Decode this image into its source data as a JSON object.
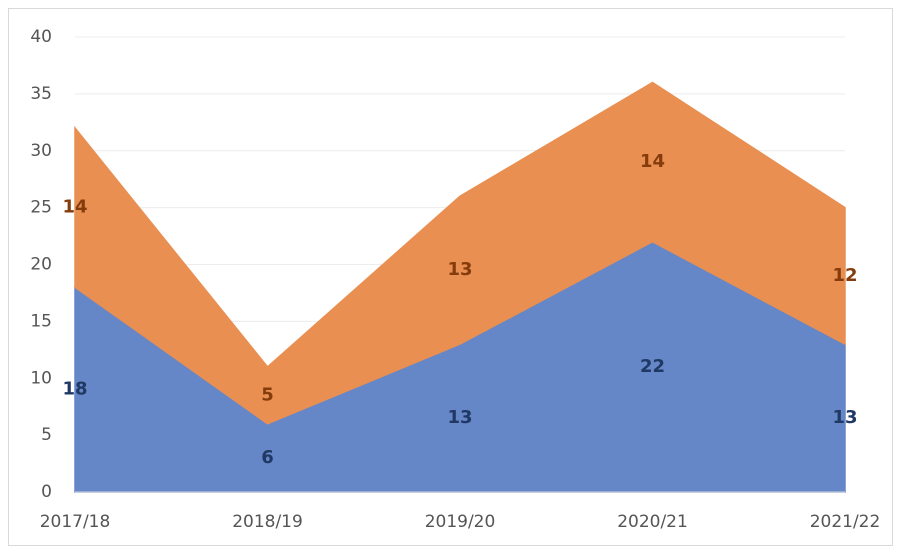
{
  "chart_data": {
    "type": "area",
    "stacked": true,
    "categories": [
      "2017/18",
      "2018/19",
      "2019/20",
      "2020/21",
      "2021/22"
    ],
    "series": [
      {
        "color": "#6586c7",
        "label_color": "#1f3864",
        "values": [
          18,
          6,
          13,
          22,
          13
        ]
      },
      {
        "color": "#e98f51",
        "label_color": "#843c0c",
        "values": [
          14,
          5,
          13,
          14,
          12
        ]
      }
    ],
    "ylim": [
      0,
      40
    ],
    "yticks": [
      0,
      5,
      10,
      15,
      20,
      25,
      30,
      35,
      40
    ],
    "grid": true,
    "data_labels": true
  }
}
